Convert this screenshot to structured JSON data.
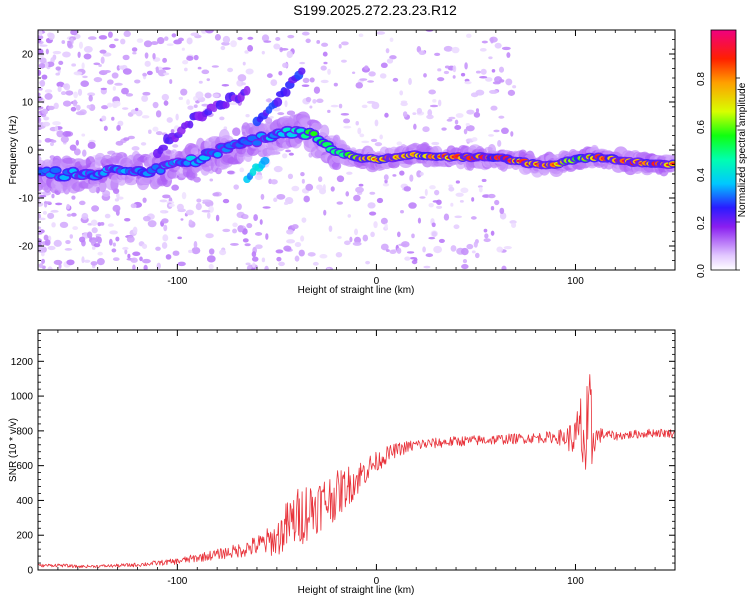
{
  "title": "S199.2025.272.23.23.R12",
  "colors": {
    "snr_line": "#e8323a",
    "ridge_background": "#7a18e8",
    "ridge_core": "#e01a1a"
  },
  "chart_data": [
    {
      "type": "heatmap",
      "name": "spectrogram",
      "xlabel": "Height of straight line (km)",
      "ylabel": "Frequency (Hz)",
      "xlim": [
        -170,
        150
      ],
      "ylim": [
        -25,
        25
      ],
      "xticks": [
        -100,
        0,
        100
      ],
      "yticks": [
        -20,
        -10,
        0,
        10,
        20
      ],
      "colorbar": {
        "label": "Normalized spectral amplitude",
        "range": [
          0,
          1
        ],
        "ticks": [
          0.0,
          0.2,
          0.4,
          0.6,
          0.8
        ]
      },
      "ridge": {
        "x": [
          -170,
          -150,
          -130,
          -110,
          -90,
          -70,
          -55,
          -45,
          -38,
          -30,
          -20,
          -10,
          0,
          10,
          20,
          40,
          60,
          80,
          90,
          100,
          110,
          130,
          150
        ],
        "frequency": [
          -5,
          -5,
          -4.5,
          -4,
          -2,
          1,
          2.5,
          3.5,
          4,
          2.5,
          -0.5,
          -1.5,
          -2,
          -1.5,
          -1,
          -1.5,
          -1.5,
          -3,
          -3,
          -2,
          -1.5,
          -2.5,
          -3
        ],
        "amplitude": [
          0.3,
          0.35,
          0.35,
          0.35,
          0.35,
          0.3,
          0.35,
          0.4,
          0.45,
          0.55,
          0.5,
          0.65,
          0.75,
          0.75,
          0.7,
          0.8,
          0.85,
          0.8,
          0.75,
          0.55,
          0.8,
          0.85,
          0.8
        ]
      },
      "branches": [
        {
          "x": [
            -110,
            -90,
            -75,
            -65
          ],
          "frequency": [
            0,
            7,
            10,
            12
          ],
          "amplitude": 0.2
        },
        {
          "x": [
            -60,
            -50,
            -42,
            -37
          ],
          "frequency": [
            6,
            10,
            14,
            17
          ],
          "amplitude": 0.25
        },
        {
          "x": [
            -65,
            -60,
            -55
          ],
          "frequency": [
            -6,
            -4,
            -2
          ],
          "amplitude": 0.4
        }
      ]
    },
    {
      "type": "line",
      "name": "snr",
      "xlabel": "Height of straight line (km)",
      "ylabel": "SNR (10 * v/v)",
      "xlim": [
        -170,
        150
      ],
      "ylim": [
        0,
        1380
      ],
      "xticks": [
        -100,
        0,
        100
      ],
      "yticks": [
        0,
        200,
        400,
        600,
        800,
        1000,
        1200
      ],
      "series": [
        {
          "x": [
            -170,
            -160,
            -150,
            -140,
            -130,
            -120,
            -110,
            -100,
            -90,
            -80,
            -70,
            -60,
            -50,
            -45,
            -40,
            -35,
            -30,
            -25,
            -20,
            -15,
            -10,
            -5,
            0,
            5,
            10,
            20,
            30,
            40,
            50,
            60,
            70,
            80,
            90,
            95,
            100,
            103,
            105,
            107,
            108,
            109,
            110,
            115,
            120,
            130,
            140,
            150
          ],
          "y": [
            25,
            28,
            20,
            22,
            25,
            30,
            40,
            50,
            70,
            90,
            110,
            140,
            180,
            250,
            300,
            340,
            370,
            400,
            430,
            480,
            520,
            580,
            620,
            660,
            690,
            720,
            730,
            740,
            745,
            750,
            755,
            760,
            765,
            760,
            760,
            800,
            700,
            650,
            780,
            760,
            770,
            780,
            770,
            780,
            790,
            785
          ],
          "noise": [
            8,
            10,
            8,
            8,
            10,
            12,
            15,
            18,
            25,
            30,
            40,
            60,
            100,
            150,
            170,
            180,
            160,
            150,
            140,
            120,
            100,
            80,
            60,
            50,
            40,
            35,
            30,
            30,
            30,
            30,
            30,
            30,
            35,
            60,
            120,
            250,
            320,
            500,
            350,
            150,
            60,
            30,
            25,
            25,
            25,
            25
          ]
        }
      ]
    }
  ]
}
